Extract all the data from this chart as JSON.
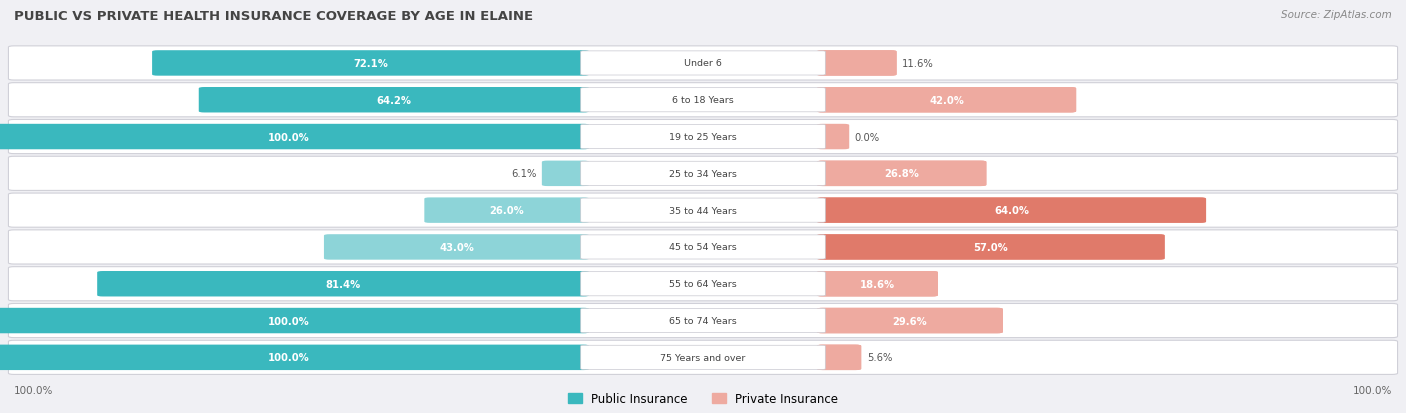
{
  "title": "PUBLIC VS PRIVATE HEALTH INSURANCE COVERAGE BY AGE IN ELAINE",
  "source": "Source: ZipAtlas.com",
  "categories": [
    "Under 6",
    "6 to 18 Years",
    "19 to 25 Years",
    "25 to 34 Years",
    "35 to 44 Years",
    "45 to 54 Years",
    "55 to 64 Years",
    "65 to 74 Years",
    "75 Years and over"
  ],
  "public_values": [
    72.1,
    64.2,
    100.0,
    6.1,
    26.0,
    43.0,
    81.4,
    100.0,
    100.0
  ],
  "private_values": [
    11.6,
    42.0,
    0.0,
    26.8,
    64.0,
    57.0,
    18.6,
    29.6,
    5.6
  ],
  "public_color_full": "#3ab8be",
  "public_color_partial": "#8dd4d8",
  "private_color_full": "#e07a6a",
  "private_color_partial": "#eeaaa0",
  "row_bg_color": "#e8e8ec",
  "row_fill_color": "#f4f4f7",
  "label_bg_color": "#ffffff",
  "text_white": "#ffffff",
  "text_dark": "#555555",
  "title_color": "#444444",
  "source_color": "#888888",
  "max_value": 100.0,
  "figsize": [
    14.06,
    4.14
  ],
  "dpi": 100,
  "full_threshold": 50.0
}
